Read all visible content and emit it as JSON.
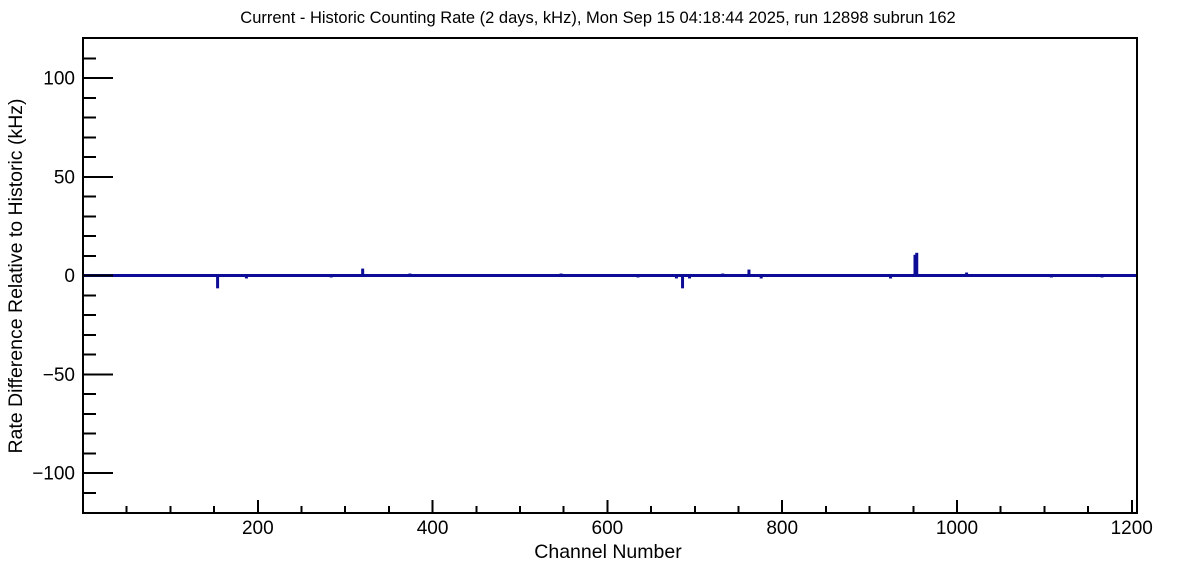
{
  "chart": {
    "title": "Current - Historic Counting Rate (2 days, kHz), Mon Sep 15 04:18:44 2025, run 12898 subrun 162"
  },
  "chart_data": {
    "type": "line",
    "title": "Current - Historic Counting Rate (2 days, kHz), Mon Sep 15 04:18:44 2025, run 12898 subrun 162",
    "xlabel": "Channel Number",
    "ylabel": "Rate Difference Relative to Historic (kHz)",
    "xlim": [
      0,
      1206
    ],
    "ylim": [
      -120,
      120
    ],
    "grid": false,
    "legend": false,
    "x_ticks": [
      {
        "v": 200,
        "label": "200"
      },
      {
        "v": 400,
        "label": "400"
      },
      {
        "v": 600,
        "label": "600"
      },
      {
        "v": 800,
        "label": "800"
      },
      {
        "v": 1000,
        "label": "1000"
      },
      {
        "v": 1200,
        "label": "1200"
      }
    ],
    "y_ticks": [
      {
        "v": -100,
        "label": "−100"
      },
      {
        "v": -50,
        "label": "−50"
      },
      {
        "v": 0,
        "label": "0"
      },
      {
        "v": 50,
        "label": "50"
      },
      {
        "v": 100,
        "label": "100"
      }
    ],
    "x_minor_step": 50,
    "y_minor_step": 10,
    "y_minor_range": [
      -110,
      110
    ],
    "baseline_value": 0,
    "line_color": "#0c0c96",
    "axis_color": "#000000",
    "background_color": "#ffffff",
    "spikes": [
      {
        "channel": 154,
        "value": -6.5
      },
      {
        "channel": 187,
        "value": -1.5
      },
      {
        "channel": 284,
        "value": -1
      },
      {
        "channel": 320,
        "value": 3.5
      },
      {
        "channel": 374,
        "value": 1
      },
      {
        "channel": 547,
        "value": 1
      },
      {
        "channel": 635,
        "value": -1
      },
      {
        "channel": 679,
        "value": -1.5
      },
      {
        "channel": 686,
        "value": -6.5
      },
      {
        "channel": 694,
        "value": -1.5
      },
      {
        "channel": 732,
        "value": 1
      },
      {
        "channel": 762,
        "value": 3
      },
      {
        "channel": 776,
        "value": -1.5
      },
      {
        "channel": 924,
        "value": -1.5
      },
      {
        "channel": 952,
        "value": 10.5
      },
      {
        "channel": 954,
        "value": 11.5
      },
      {
        "channel": 1011,
        "value": 1.5
      },
      {
        "channel": 1108,
        "value": -1
      },
      {
        "channel": 1166,
        "value": -1
      }
    ]
  }
}
